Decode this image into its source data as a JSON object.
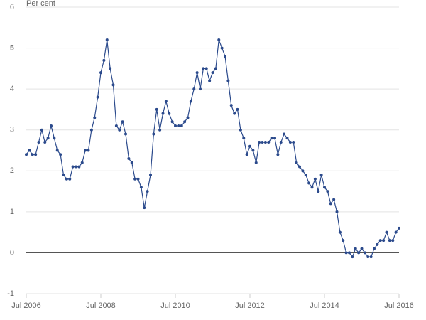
{
  "chart_data": {
    "type": "line",
    "y_axis_label": "Per cent",
    "x": [
      "2006-07",
      "2006-08",
      "2006-09",
      "2006-10",
      "2006-11",
      "2006-12",
      "2007-01",
      "2007-02",
      "2007-03",
      "2007-04",
      "2007-05",
      "2007-06",
      "2007-07",
      "2007-08",
      "2007-09",
      "2007-10",
      "2007-11",
      "2007-12",
      "2008-01",
      "2008-02",
      "2008-03",
      "2008-04",
      "2008-05",
      "2008-06",
      "2008-07",
      "2008-08",
      "2008-09",
      "2008-10",
      "2008-11",
      "2008-12",
      "2009-01",
      "2009-02",
      "2009-03",
      "2009-04",
      "2009-05",
      "2009-06",
      "2009-07",
      "2009-08",
      "2009-09",
      "2009-10",
      "2009-11",
      "2009-12",
      "2010-01",
      "2010-02",
      "2010-03",
      "2010-04",
      "2010-05",
      "2010-06",
      "2010-07",
      "2010-08",
      "2010-09",
      "2010-10",
      "2010-11",
      "2010-12",
      "2011-01",
      "2011-02",
      "2011-03",
      "2011-04",
      "2011-05",
      "2011-06",
      "2011-07",
      "2011-08",
      "2011-09",
      "2011-10",
      "2011-11",
      "2011-12",
      "2012-01",
      "2012-02",
      "2012-03",
      "2012-04",
      "2012-05",
      "2012-06",
      "2012-07",
      "2012-08",
      "2012-09",
      "2012-10",
      "2012-11",
      "2012-12",
      "2013-01",
      "2013-02",
      "2013-03",
      "2013-04",
      "2013-05",
      "2013-06",
      "2013-07",
      "2013-08",
      "2013-09",
      "2013-10",
      "2013-11",
      "2013-12",
      "2014-01",
      "2014-02",
      "2014-03",
      "2014-04",
      "2014-05",
      "2014-06",
      "2014-07",
      "2014-08",
      "2014-09",
      "2014-10",
      "2014-11",
      "2014-12",
      "2015-01",
      "2015-02",
      "2015-03",
      "2015-04",
      "2015-05",
      "2015-06",
      "2015-07",
      "2015-08",
      "2015-09",
      "2015-10",
      "2015-11",
      "2015-12",
      "2016-01",
      "2016-02",
      "2016-03",
      "2016-04",
      "2016-05",
      "2016-06",
      "2016-07"
    ],
    "series": [
      {
        "color": "#2b4a8c",
        "values": [
          2.4,
          2.5,
          2.4,
          2.4,
          2.7,
          3.0,
          2.7,
          2.8,
          3.1,
          2.8,
          2.5,
          2.4,
          1.9,
          1.8,
          1.8,
          2.1,
          2.1,
          2.1,
          2.2,
          2.5,
          2.5,
          3.0,
          3.3,
          3.8,
          4.4,
          4.7,
          5.2,
          4.5,
          4.1,
          3.1,
          3.0,
          3.2,
          2.9,
          2.3,
          2.2,
          1.8,
          1.8,
          1.6,
          1.1,
          1.5,
          1.9,
          2.9,
          3.5,
          3.0,
          3.4,
          3.7,
          3.4,
          3.2,
          3.1,
          3.1,
          3.1,
          3.2,
          3.3,
          3.7,
          4.0,
          4.4,
          4.0,
          4.5,
          4.5,
          4.2,
          4.4,
          4.5,
          5.2,
          5.0,
          4.8,
          4.2,
          3.6,
          3.4,
          3.5,
          3.0,
          2.8,
          2.4,
          2.6,
          2.5,
          2.2,
          2.7,
          2.7,
          2.7,
          2.7,
          2.8,
          2.8,
          2.4,
          2.7,
          2.9,
          2.8,
          2.7,
          2.7,
          2.2,
          2.1,
          2.0,
          1.9,
          1.7,
          1.6,
          1.8,
          1.5,
          1.9,
          1.6,
          1.5,
          1.2,
          1.3,
          1.0,
          0.5,
          0.3,
          0.0,
          0.0,
          -0.1,
          0.1,
          0.0,
          0.1,
          0.0,
          -0.1,
          -0.1,
          0.1,
          0.2,
          0.3,
          0.3,
          0.5,
          0.3,
          0.3,
          0.5,
          0.6
        ]
      }
    ],
    "xlim": [
      "2006-07",
      "2016-07"
    ],
    "xticks": [
      {
        "value": "2006-07",
        "label": "Jul 2006"
      },
      {
        "value": "2008-07",
        "label": "Jul 2008"
      },
      {
        "value": "2010-07",
        "label": "Jul 2010"
      },
      {
        "value": "2012-07",
        "label": "Jul 2012"
      },
      {
        "value": "2014-07",
        "label": "Jul 2014"
      },
      {
        "value": "2016-07",
        "label": "Jul 2016"
      }
    ],
    "ylim": [
      -1,
      6
    ],
    "yticks": [
      -1,
      0,
      1,
      2,
      3,
      4,
      5,
      6
    ],
    "grid": true
  }
}
